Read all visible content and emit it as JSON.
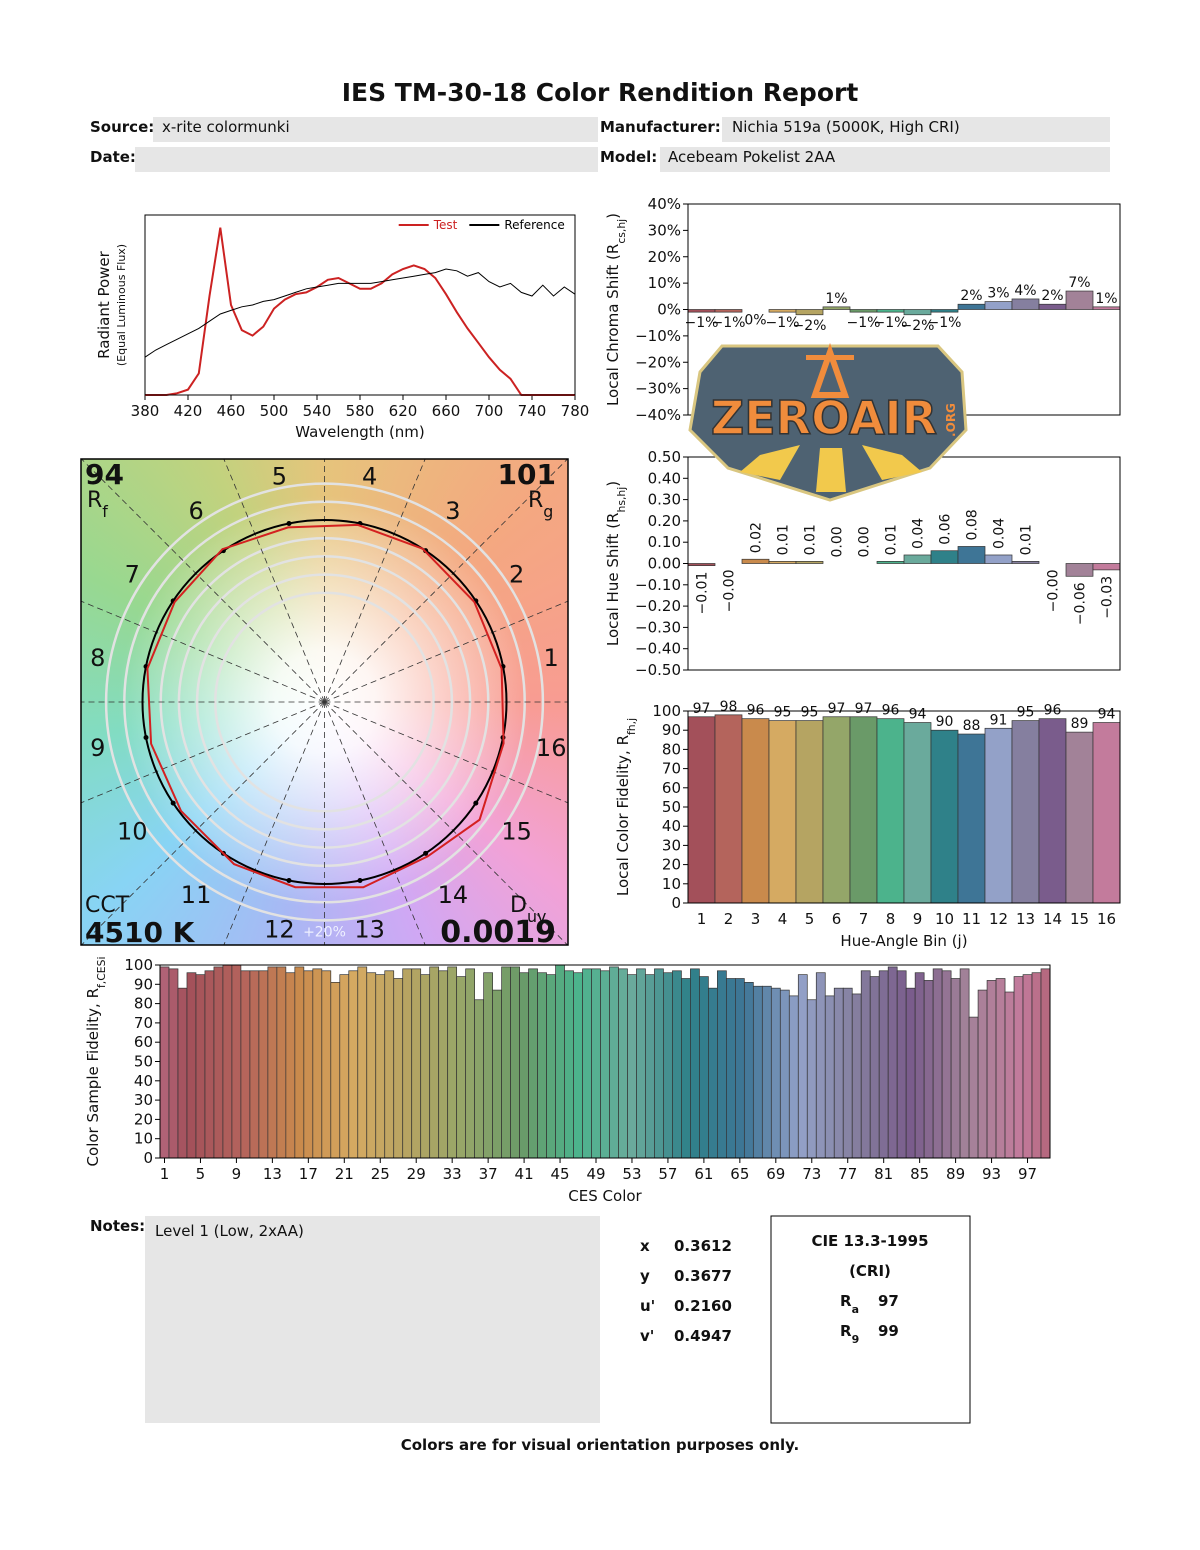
{
  "header": {
    "title": "IES TM-30-18 Color Rendition Report",
    "fields": [
      {
        "label": "Source:",
        "value": "x-rite colormunki"
      },
      {
        "label": "Manufacturer:",
        "value": "Nichia 519a (5000K, High CRI)"
      },
      {
        "label": "Date:"
      },
      {
        "label": "Model:",
        "value": "Acebeam Pokelist 2AA"
      }
    ]
  },
  "chart_data": [
    {
      "type": "line",
      "xlabel": "Wavelength (nm)",
      "ylabel": "Radiant Power",
      "ylabel2": "(Equal Luminous Flux)",
      "x": [
        380,
        390,
        400,
        410,
        420,
        430,
        440,
        450,
        460,
        470,
        480,
        490,
        500,
        510,
        520,
        530,
        540,
        550,
        560,
        570,
        580,
        590,
        600,
        610,
        620,
        630,
        640,
        650,
        660,
        670,
        680,
        690,
        700,
        710,
        720,
        730,
        740,
        750,
        760,
        770,
        780
      ],
      "series": [
        {
          "name": "Test",
          "color": "#cc2222",
          "values": [
            0,
            0,
            0,
            0.01,
            0.03,
            0.12,
            0.55,
            0.93,
            0.5,
            0.36,
            0.33,
            0.38,
            0.48,
            0.53,
            0.56,
            0.57,
            0.6,
            0.64,
            0.65,
            0.62,
            0.59,
            0.59,
            0.62,
            0.67,
            0.7,
            0.72,
            0.7,
            0.65,
            0.56,
            0.46,
            0.37,
            0.29,
            0.21,
            0.14,
            0.09,
            0,
            0,
            0,
            0,
            0,
            0
          ]
        },
        {
          "name": "Reference",
          "color": "#000000",
          "values": [
            0.21,
            0.25,
            0.28,
            0.31,
            0.34,
            0.37,
            0.41,
            0.45,
            0.47,
            0.49,
            0.5,
            0.52,
            0.53,
            0.55,
            0.57,
            0.59,
            0.6,
            0.61,
            0.62,
            0.62,
            0.62,
            0.62,
            0.63,
            0.64,
            0.65,
            0.66,
            0.67,
            0.68,
            0.7,
            0.69,
            0.66,
            0.68,
            0.63,
            0.6,
            0.62,
            0.57,
            0.55,
            0.61,
            0.55,
            0.6,
            0.56
          ]
        }
      ],
      "xlim": [
        380,
        780
      ],
      "xticks": [
        380,
        420,
        460,
        500,
        540,
        580,
        620,
        660,
        700,
        740,
        780
      ],
      "ylim": [
        0,
        1
      ]
    },
    {
      "type": "bar",
      "ylabel": {
        "text": "Local Chroma Shift (R",
        "sub": "cs,hj",
        "suffix": ")"
      },
      "show_values": true,
      "values": [
        -1,
        -1,
        -0.0,
        -1,
        -2,
        1,
        -1,
        -1,
        -2,
        -1,
        2,
        3,
        4,
        2,
        7,
        1
      ],
      "value_labels": [
        "−1%",
        "−1%",
        "0%",
        "−1%",
        "−2%",
        "1%",
        "−1%",
        "−1%",
        "−2%",
        "−1%",
        "2%",
        "3%",
        "4%",
        "2%",
        "7%",
        "1%"
      ],
      "colors": [
        "#a3505a",
        "#b4645c",
        "#c98a4c",
        "#d5aa62",
        "#b5a462",
        "#94a669",
        "#6a9a68",
        "#4cb38c",
        "#6aaa9c",
        "#2f8189",
        "#3e7596",
        "#93a1c8",
        "#857f9f",
        "#7a5c8c",
        "#a28298",
        "#c37b9c"
      ],
      "ylim": [
        -40,
        40
      ],
      "yticks": [
        {
          "value": -40,
          "label": "−40%"
        },
        {
          "value": -30,
          "label": "−30%"
        },
        {
          "value": -20,
          "label": "−20%"
        },
        {
          "value": -10,
          "label": "−10%"
        },
        {
          "value": 0,
          "label": "0%"
        },
        {
          "value": 10,
          "label": "10%"
        },
        {
          "value": 20,
          "label": "20%"
        },
        {
          "value": 30,
          "label": "30%"
        },
        {
          "value": 40,
          "label": "40%"
        }
      ]
    },
    {
      "type": "bar",
      "ylabel": {
        "text": "Local Hue Shift (R",
        "sub": "hs,hj",
        "suffix": ")"
      },
      "show_values": true,
      "label_orientation": "vertical",
      "values": [
        -0.01,
        -0.0,
        0.02,
        0.01,
        0.01,
        0.0,
        0.0,
        0.01,
        0.04,
        0.06,
        0.08,
        0.04,
        0.01,
        -0.0,
        -0.06,
        -0.03
      ],
      "value_labels": [
        "−0.01",
        "−0.00",
        "0.02",
        "0.01",
        "0.01",
        "0.00",
        "0.00",
        "0.01",
        "0.04",
        "0.06",
        "0.08",
        "0.04",
        "0.01",
        "−0.00",
        "−0.06",
        "−0.03"
      ],
      "colors": [
        "#a3505a",
        "#b4645c",
        "#c98a4c",
        "#d5aa62",
        "#b5a462",
        "#94a669",
        "#6a9a68",
        "#4cb38c",
        "#6aaa9c",
        "#2f8189",
        "#3e7596",
        "#93a1c8",
        "#857f9f",
        "#7a5c8c",
        "#a28298",
        "#c37b9c"
      ],
      "ylim": [
        -0.5,
        0.5
      ],
      "yticks": [
        {
          "value": -0.5,
          "label": "−0.50"
        },
        {
          "value": -0.4,
          "label": "−0.40"
        },
        {
          "value": -0.3,
          "label": "−0.30"
        },
        {
          "value": -0.2,
          "label": "−0.20"
        },
        {
          "value": -0.1,
          "label": "−0.10"
        },
        {
          "value": 0,
          "label": "0.00"
        },
        {
          "value": 0.1,
          "label": "0.10"
        },
        {
          "value": 0.2,
          "label": "0.20"
        },
        {
          "value": 0.3,
          "label": "0.30"
        },
        {
          "value": 0.4,
          "label": "0.40"
        },
        {
          "value": 0.5,
          "label": "0.50"
        }
      ]
    },
    {
      "type": "bar",
      "ylabel": {
        "text": "Local Color Fidelity, R",
        "sub": "fh,j"
      },
      "xlabel": "Hue-Angle Bin (j)",
      "show_values": true,
      "categories": [
        "1",
        "2",
        "3",
        "4",
        "5",
        "6",
        "7",
        "8",
        "9",
        "10",
        "11",
        "12",
        "13",
        "14",
        "15",
        "16"
      ],
      "values": [
        97,
        98,
        96,
        95,
        95,
        97,
        97,
        96,
        94,
        90,
        88,
        91,
        95,
        96,
        89,
        94
      ],
      "colors": [
        "#a3505a",
        "#b4645c",
        "#c98a4c",
        "#d5aa62",
        "#b5a462",
        "#94a669",
        "#6a9a68",
        "#4cb38c",
        "#6aaa9c",
        "#2f8189",
        "#3e7596",
        "#93a1c8",
        "#857f9f",
        "#7a5c8c",
        "#a28298",
        "#c37b9c"
      ],
      "ylim": [
        0,
        100
      ],
      "yticks": [
        0,
        10,
        20,
        30,
        40,
        50,
        60,
        70,
        80,
        90,
        100
      ]
    },
    {
      "type": "bar",
      "ylabel": {
        "text": "Color Sample Fidelity, R",
        "sub": "f,CESi"
      },
      "xlabel": "CES Color",
      "x": [
        1,
        2,
        3,
        4,
        5,
        6,
        7,
        8,
        9,
        10,
        11,
        12,
        13,
        14,
        15,
        16,
        17,
        18,
        19,
        20,
        21,
        22,
        23,
        24,
        25,
        26,
        27,
        28,
        29,
        30,
        31,
        32,
        33,
        34,
        35,
        36,
        37,
        38,
        39,
        40,
        41,
        42,
        43,
        44,
        45,
        46,
        47,
        48,
        49,
        50,
        51,
        52,
        53,
        54,
        55,
        56,
        57,
        58,
        59,
        60,
        61,
        62,
        63,
        64,
        65,
        66,
        67,
        68,
        69,
        70,
        71,
        72,
        73,
        74,
        75,
        76,
        77,
        78,
        79,
        80,
        81,
        82,
        83,
        84,
        85,
        86,
        87,
        88,
        89,
        90,
        91,
        92,
        93,
        94,
        95,
        96,
        97,
        98,
        99
      ],
      "values": [
        99,
        98,
        88,
        96,
        95,
        97,
        99,
        100,
        100,
        97,
        97,
        97,
        99,
        99,
        96,
        99,
        97,
        98,
        97,
        91,
        95,
        97,
        99,
        96,
        95,
        97,
        93,
        98,
        98,
        95,
        99,
        97,
        99,
        94,
        98,
        82,
        96,
        87,
        99,
        99,
        96,
        98,
        96,
        95,
        100,
        97,
        96,
        98,
        98,
        97,
        99,
        98,
        95,
        98,
        95,
        98,
        96,
        97,
        93,
        98,
        94,
        88,
        97,
        93,
        93,
        91,
        89,
        89,
        88,
        87,
        84,
        95,
        82,
        96,
        84,
        88,
        88,
        85,
        97,
        94,
        97,
        99,
        97,
        88,
        96,
        92,
        98,
        97,
        93,
        98,
        73,
        87,
        92,
        93,
        86,
        94,
        95,
        96,
        98
      ],
      "colors": [
        "#a3505a",
        "#b4645c",
        "#c98a4c",
        "#d5aa62",
        "#b5a462",
        "#94a669",
        "#6a9a68",
        "#4cb38c",
        "#6aaa9c",
        "#2f8189",
        "#3e7596",
        "#93a1c8",
        "#857f9f",
        "#7a5c8c",
        "#a28298",
        "#c37b9c"
      ],
      "xlim": [
        0.5,
        99.5
      ],
      "xticks": [
        1,
        5,
        9,
        13,
        17,
        21,
        25,
        29,
        33,
        37,
        41,
        45,
        49,
        53,
        57,
        61,
        65,
        69,
        73,
        77,
        81,
        85,
        89,
        93,
        97
      ],
      "ylim": [
        0,
        100
      ],
      "yticks": [
        0,
        10,
        20,
        30,
        40,
        50,
        60,
        70,
        80,
        90,
        100
      ]
    },
    {
      "type": "vector",
      "categories": [
        "1",
        "2",
        "3",
        "4",
        "5",
        "6",
        "7",
        "8",
        "9",
        "10",
        "11",
        "12",
        "13",
        "14",
        "15",
        "16"
      ],
      "rf": {
        "value": 94,
        "symbol": "R",
        "sub": "f"
      },
      "rg": {
        "value": 101,
        "symbol": "R",
        "sub": "g"
      },
      "cct": {
        "label": "CCT",
        "value": "4510 K"
      },
      "duv": {
        "symbol": "D",
        "sub": "uv",
        "value": 0.0019
      },
      "ring_label": "+20%",
      "test_color": "#d42020",
      "reference_color": "#000000"
    }
  ],
  "notes": {
    "label": "Notes:",
    "text": "Level 1 (Low, 2xAA)"
  },
  "chromaticity": [
    {
      "label": "x",
      "value": "0.3612"
    },
    {
      "label": "y",
      "value": "0.3677"
    },
    {
      "label": "u'",
      "value": "0.2160"
    },
    {
      "label": "v'",
      "value": "0.4947"
    }
  ],
  "cri": {
    "title": "CIE 13.3-1995",
    "subtitle": "(CRI)",
    "rows": [
      {
        "symbol": "R",
        "sub": "a",
        "value": 97
      },
      {
        "symbol": "R",
        "sub": "9",
        "value": 99
      }
    ]
  },
  "footer": "Colors are for visual orientation purposes only.",
  "watermark": {
    "text": "ZEROAIR",
    "suffix": ".ORG"
  }
}
